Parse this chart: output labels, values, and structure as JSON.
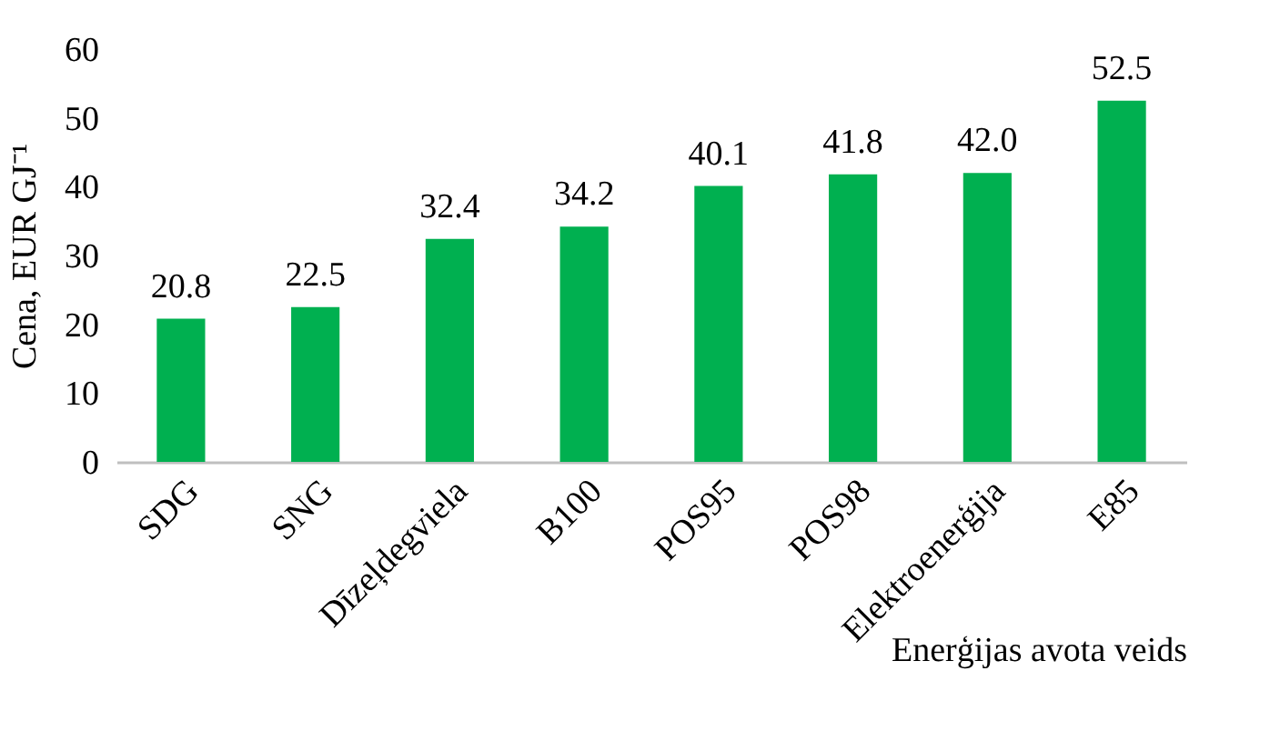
{
  "chart_data": {
    "type": "bar",
    "xlabel": "Enerģijas avota veids",
    "ylabel": "Cena, EUR GJ⁻¹",
    "categories": [
      "SDG",
      "SNG",
      "Dīzeļdegviela",
      "B100",
      "POS95",
      "POS98",
      "Elektroenerģija",
      "E85"
    ],
    "values": [
      20.8,
      22.5,
      32.4,
      34.2,
      40.1,
      41.8,
      42.0,
      52.5
    ],
    "value_labels": [
      "20.8",
      "22.5",
      "32.4",
      "34.2",
      "40.1",
      "41.8",
      "42.0",
      "52.5"
    ],
    "color": "#00b050",
    "ylim": [
      0,
      60
    ],
    "yticks": [
      0,
      10,
      20,
      30,
      40,
      50,
      60
    ],
    "grid": false
  }
}
